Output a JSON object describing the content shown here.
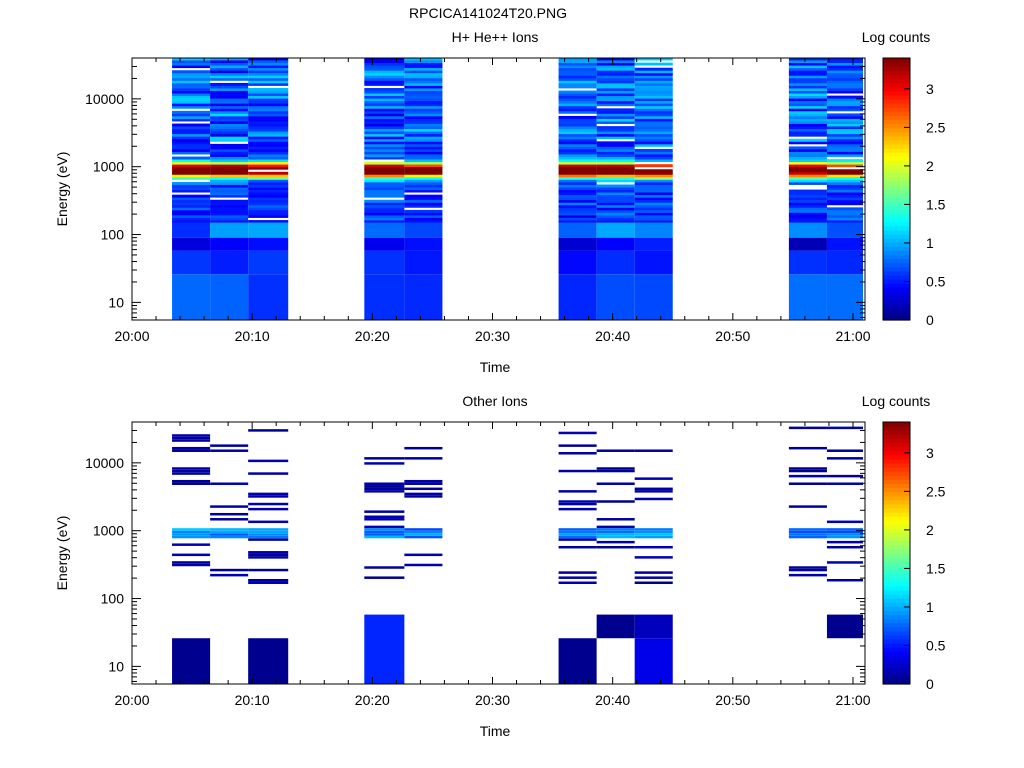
{
  "figure_title": "RPCICA141024T20.PNG",
  "chart_data": [
    {
      "type": "heatmap",
      "title": "H+ He++ Ions",
      "xlabel": "Time",
      "ylabel": "Energy (eV)",
      "colorbar_label": "Log counts",
      "x_ticks": [
        "20:00",
        "20:10",
        "20:20",
        "20:30",
        "20:40",
        "20:50",
        "21:00"
      ],
      "y_scale": "log",
      "y_ticks": [
        "10",
        "100",
        "1000",
        "10000"
      ],
      "colorbar_ticks": [
        "0",
        "0.5",
        "1",
        "1.5",
        "2",
        "2.5",
        "3"
      ],
      "colorbar_range": [
        0,
        3.4
      ],
      "xlim": [
        "20:00",
        "21:01"
      ],
      "ylim": [
        5.5,
        40000
      ],
      "colormap": [
        "#00007f",
        "#0000ff",
        "#007fff",
        "#00ffff",
        "#7fff7f",
        "#ffff00",
        "#ff7f00",
        "#ff0000",
        "#7f0000"
      ],
      "time_blocks": [
        {
          "start": "20:03:20",
          "end": "20:06:30",
          "profile": "peak_a",
          "seed": 11
        },
        {
          "start": "20:06:30",
          "end": "20:09:40",
          "profile": "peak_b",
          "seed": 23
        },
        {
          "start": "20:09:40",
          "end": "20:13:00",
          "profile": "peak_b",
          "seed": 37
        },
        {
          "start": "20:19:20",
          "end": "20:22:40",
          "profile": "peak_c",
          "seed": 41
        },
        {
          "start": "20:22:40",
          "end": "20:25:50",
          "profile": "peak_c",
          "seed": 53
        },
        {
          "start": "20:35:30",
          "end": "20:38:40",
          "profile": "peak_d",
          "seed": 61
        },
        {
          "start": "20:38:40",
          "end": "20:41:50",
          "profile": "peak_d",
          "seed": 71
        },
        {
          "start": "20:41:50",
          "end": "20:45:00",
          "profile": "peak_d",
          "seed": 83
        },
        {
          "start": "20:54:40",
          "end": "20:57:50",
          "profile": "peak_a",
          "seed": 97
        },
        {
          "start": "20:57:50",
          "end": "21:00:50",
          "profile": "peak_b",
          "seed": 101
        }
      ],
      "energy_peak_ev": 900,
      "peak_log_counts": 3.3
    },
    {
      "type": "heatmap",
      "title": "Other Ions",
      "xlabel": "Time",
      "ylabel": "Energy (eV)",
      "colorbar_label": "Log counts",
      "x_ticks": [
        "20:00",
        "20:10",
        "20:20",
        "20:30",
        "20:40",
        "20:50",
        "21:00"
      ],
      "y_scale": "log",
      "y_ticks": [
        "10",
        "100",
        "1000",
        "10000"
      ],
      "colorbar_ticks": [
        "0",
        "0.5",
        "1",
        "1.5",
        "2",
        "2.5",
        "3"
      ],
      "colorbar_range": [
        0,
        3.4
      ],
      "xlim": [
        "20:00",
        "21:01"
      ],
      "ylim": [
        5.5,
        40000
      ],
      "time_blocks": [
        {
          "start": "20:03:20",
          "end": "20:06:30",
          "seed": 5
        },
        {
          "start": "20:06:30",
          "end": "20:09:40",
          "seed": 7
        },
        {
          "start": "20:09:40",
          "end": "20:13:00",
          "seed": 9
        },
        {
          "start": "20:19:20",
          "end": "20:22:40",
          "seed": 13
        },
        {
          "start": "20:22:40",
          "end": "20:25:50",
          "seed": 17
        },
        {
          "start": "20:35:30",
          "end": "20:38:40",
          "seed": 19
        },
        {
          "start": "20:38:40",
          "end": "20:41:50",
          "seed": 29
        },
        {
          "start": "20:41:50",
          "end": "20:45:00",
          "seed": 31
        },
        {
          "start": "20:54:40",
          "end": "20:57:50",
          "seed": 43
        },
        {
          "start": "20:57:50",
          "end": "21:00:50",
          "seed": 47
        }
      ],
      "low_energy_blocks": [
        {
          "start": "20:03:20",
          "end": "20:06:30",
          "energy_range": [
            5.5,
            26
          ],
          "value": 0.05
        },
        {
          "start": "20:09:40",
          "end": "20:13:00",
          "energy_range": [
            5.5,
            26
          ],
          "value": 0.05
        },
        {
          "start": "20:19:20",
          "end": "20:22:40",
          "energy_range": [
            5.5,
            58
          ],
          "value": 0.55
        },
        {
          "start": "20:35:30",
          "end": "20:38:40",
          "energy_range": [
            5.5,
            26
          ],
          "value": 0.05
        },
        {
          "start": "20:38:40",
          "end": "20:41:50",
          "energy_range": [
            26,
            58
          ],
          "value": 0.05
        },
        {
          "start": "20:41:50",
          "end": "20:45:00",
          "energy_range": [
            5.5,
            26
          ],
          "value": 0.35
        },
        {
          "start": "20:41:50",
          "end": "20:45:00",
          "energy_range": [
            26,
            58
          ],
          "value": 0.2
        },
        {
          "start": "20:57:50",
          "end": "21:00:50",
          "energy_range": [
            26,
            58
          ],
          "value": 0.05
        }
      ],
      "energy_peak_ev": 900,
      "peak_log_counts": 1.1
    }
  ]
}
